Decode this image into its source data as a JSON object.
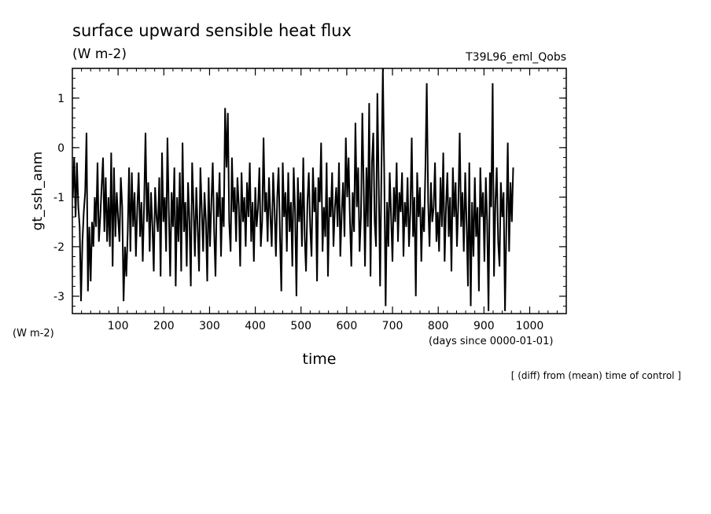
{
  "chart_data": {
    "type": "line",
    "title": "surface upward sensible heat flux",
    "units": "(W m-2)",
    "experiment": "T39L96_eml_Qobs",
    "ylabel": "gt_ssh_anm",
    "yunits": "(W m-2)",
    "xlabel": "time",
    "xunits": "(days since 0000-01-01)",
    "note": "[ (diff) from (mean) time of control ]",
    "xlim": [
      0,
      1080
    ],
    "ylim": [
      -3.35,
      1.6
    ],
    "xticks": [
      100,
      200,
      300,
      400,
      500,
      600,
      700,
      800,
      900,
      1000
    ],
    "yticks": [
      1,
      0,
      -1,
      -2,
      -3
    ],
    "x_start": 1,
    "x_step": 3,
    "series": [
      {
        "values": [
          -1.0,
          -0.2,
          -1.4,
          -0.3,
          -1.2,
          -1.6,
          -3.1,
          -1.9,
          -1.3,
          -0.9,
          0.3,
          -2.9,
          -1.6,
          -2.7,
          -1.5,
          -2.0,
          -1.0,
          -1.6,
          -0.3,
          -1.9,
          -1.4,
          -0.8,
          -0.2,
          -1.7,
          -0.6,
          -1.9,
          -1.0,
          -2.0,
          -0.1,
          -2.4,
          -0.4,
          -1.8,
          -0.9,
          -1.4,
          -1.9,
          -0.6,
          -1.2,
          -3.1,
          -2.0,
          -2.6,
          -1.7,
          -0.4,
          -2.1,
          -0.5,
          -1.6,
          -0.9,
          -2.2,
          -1.2,
          -0.5,
          -1.8,
          -1.1,
          -2.3,
          -1.1,
          0.3,
          -1.5,
          -0.7,
          -2.1,
          -0.9,
          -1.6,
          -2.5,
          -0.8,
          -1.4,
          -1.7,
          -0.6,
          -2.6,
          -0.1,
          -1.5,
          -1.0,
          -2.1,
          0.2,
          -1.3,
          -2.6,
          -0.9,
          -1.6,
          -0.4,
          -2.8,
          -1.0,
          -1.9,
          -0.5,
          -2.5,
          0.1,
          -1.7,
          -1.1,
          -2.4,
          -0.7,
          -1.5,
          -2.8,
          -0.3,
          -1.2,
          -2.2,
          -0.8,
          -1.6,
          -2.5,
          -0.4,
          -1.3,
          -2.1,
          -0.9,
          -1.5,
          -2.7,
          -0.6,
          -2.0,
          -1.1,
          -0.3,
          -1.7,
          -2.6,
          -0.9,
          -1.4,
          -0.5,
          -2.2,
          -1.0,
          -1.6,
          0.8,
          -0.4,
          0.7,
          -1.5,
          -2.1,
          -0.2,
          -1.3,
          -0.8,
          -1.9,
          -0.6,
          -1.2,
          -2.4,
          -0.5,
          -1.5,
          -1.0,
          -2.0,
          -0.7,
          -1.4,
          -0.3,
          -1.9,
          -1.1,
          -2.3,
          -0.8,
          -1.6,
          -1.2,
          -0.4,
          -2.0,
          -1.5,
          0.2,
          -1.3,
          -0.9,
          -1.9,
          -0.6,
          -1.4,
          -2.0,
          -0.5,
          -1.2,
          -2.2,
          -1.0,
          -0.4,
          -1.8,
          -2.9,
          -0.3,
          -1.4,
          -0.9,
          -2.1,
          -0.5,
          -1.7,
          -1.1,
          -2.4,
          -0.4,
          -1.3,
          -3.0,
          -0.6,
          -1.5,
          -0.9,
          -2.0,
          -0.2,
          -1.8,
          -2.5,
          -1.1,
          -0.5,
          -1.6,
          -2.2,
          -0.4,
          -1.3,
          -0.8,
          -2.7,
          -0.6,
          -1.1,
          0.1,
          -2.1,
          -1.2,
          -1.8,
          -0.3,
          -2.6,
          -1.0,
          -1.4,
          -0.5,
          -2.0,
          -1.2,
          -0.8,
          -1.6,
          -0.3,
          -2.2,
          -1.3,
          -0.7,
          -1.8,
          0.2,
          -1.0,
          -0.2,
          -1.5,
          -2.4,
          -0.9,
          -1.7,
          0.5,
          -1.2,
          -0.4,
          -2.1,
          -1.4,
          0.7,
          -0.8,
          -2.4,
          -0.4,
          -1.6,
          0.9,
          -2.6,
          -0.3,
          0.3,
          -1.5,
          -2.0,
          1.1,
          -0.8,
          -2.8,
          -0.3,
          1.6,
          -0.6,
          -3.2,
          -1.1,
          -2.0,
          -0.5,
          -1.4,
          -2.3,
          -0.8,
          -1.5,
          -0.3,
          -1.9,
          -0.9,
          -1.3,
          -0.5,
          -2.2,
          -1.1,
          -1.6,
          -0.6,
          -2.0,
          -1.3,
          0.2,
          -1.8,
          -1.0,
          -3.0,
          -0.5,
          -1.4,
          -0.8,
          -2.3,
          -1.2,
          -1.7,
          -0.4,
          1.3,
          -1.1,
          -2.0,
          -0.7,
          -1.5,
          -1.2,
          -0.3,
          -1.9,
          -1.3,
          -2.1,
          -0.6,
          -1.6,
          -0.1,
          -2.3,
          -1.2,
          -0.5,
          -1.8,
          -1.0,
          -2.5,
          -0.4,
          -1.4,
          -0.7,
          -2.0,
          -1.1,
          0.3,
          -1.6,
          -0.9,
          -2.1,
          -0.5,
          -1.5,
          -2.8,
          -0.3,
          -3.2,
          -1.1,
          -2.2,
          -0.6,
          -1.8,
          -1.2,
          -2.9,
          -0.4,
          -1.4,
          -0.9,
          -2.3,
          -0.6,
          -1.5,
          -3.3,
          -0.5,
          -1.2,
          1.3,
          -2.6,
          -1.1,
          -0.4,
          -1.9,
          -2.4,
          -0.7,
          -1.4,
          -0.9,
          -3.3,
          -1.6,
          0.1,
          -2.1,
          -0.7,
          -1.5,
          -0.4
        ]
      }
    ]
  }
}
